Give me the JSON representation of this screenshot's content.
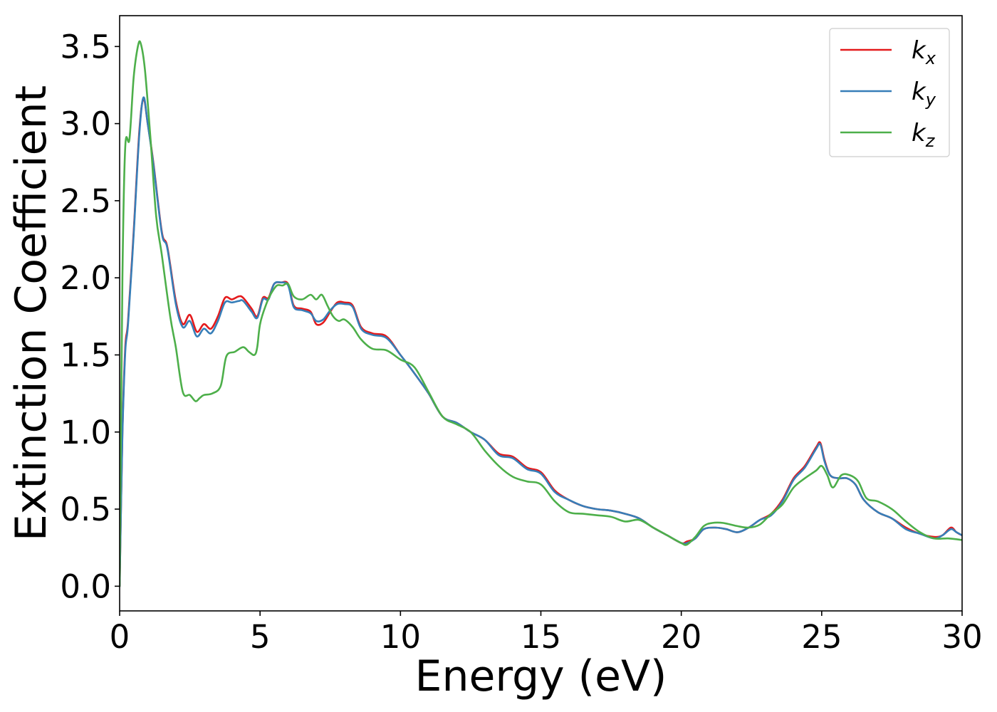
{
  "chart_data": {
    "type": "line",
    "xlabel": "Energy (eV)",
    "ylabel": "Extinction Coefficient",
    "xlim": [
      0,
      30
    ],
    "ylim": [
      -0.16,
      3.7
    ],
    "xticks": [
      0,
      5,
      10,
      15,
      20,
      25,
      30
    ],
    "xtick_labels": [
      "0",
      "5",
      "10",
      "15",
      "20",
      "25",
      "30"
    ],
    "yticks": [
      0.0,
      0.5,
      1.0,
      1.5,
      2.0,
      2.5,
      3.0,
      3.5
    ],
    "ytick_labels": [
      "0.0",
      "0.5",
      "1.0",
      "1.5",
      "2.0",
      "2.5",
      "3.0",
      "3.5"
    ],
    "grid": false,
    "legend_position": "top-right",
    "series": [
      {
        "name": "k",
        "subscript": "x",
        "color": "#e41a1c",
        "x": [
          0.0,
          0.1,
          0.2,
          0.3,
          0.5,
          0.7,
          0.85,
          1.0,
          1.2,
          1.5,
          1.7,
          2.0,
          2.25,
          2.5,
          2.75,
          3.0,
          3.25,
          3.5,
          3.75,
          4.0,
          4.25,
          4.4,
          4.7,
          4.9,
          5.1,
          5.3,
          5.5,
          5.75,
          6.0,
          6.2,
          6.5,
          6.8,
          7.0,
          7.25,
          7.5,
          7.75,
          8.0,
          8.3,
          8.6,
          9.0,
          9.5,
          10.0,
          10.5,
          11.0,
          11.5,
          12.0,
          12.5,
          13.0,
          13.5,
          14.0,
          14.5,
          15.0,
          15.5,
          16.0,
          16.5,
          17.0,
          17.5,
          18.0,
          18.5,
          19.0,
          19.5,
          20.0,
          20.2,
          20.5,
          20.8,
          21.2,
          21.6,
          22.0,
          22.4,
          22.8,
          23.2,
          23.6,
          24.0,
          24.4,
          24.8,
          24.95,
          25.1,
          25.3,
          25.6,
          25.9,
          26.2,
          26.5,
          27.0,
          27.5,
          28.0,
          28.5,
          29.0,
          29.3,
          29.6,
          29.8,
          30.0
        ],
        "y": [
          0.0,
          1.0,
          1.55,
          1.72,
          2.3,
          2.95,
          3.16,
          3.0,
          2.75,
          2.3,
          2.2,
          1.85,
          1.7,
          1.76,
          1.65,
          1.7,
          1.67,
          1.75,
          1.87,
          1.86,
          1.88,
          1.87,
          1.8,
          1.75,
          1.87,
          1.87,
          1.96,
          1.97,
          1.96,
          1.82,
          1.8,
          1.78,
          1.7,
          1.71,
          1.78,
          1.84,
          1.84,
          1.82,
          1.68,
          1.64,
          1.62,
          1.5,
          1.38,
          1.25,
          1.1,
          1.06,
          1.0,
          0.95,
          0.86,
          0.84,
          0.77,
          0.74,
          0.62,
          0.56,
          0.52,
          0.5,
          0.49,
          0.47,
          0.44,
          0.38,
          0.33,
          0.28,
          0.29,
          0.31,
          0.37,
          0.38,
          0.37,
          0.35,
          0.38,
          0.43,
          0.47,
          0.56,
          0.7,
          0.78,
          0.9,
          0.93,
          0.82,
          0.72,
          0.7,
          0.7,
          0.66,
          0.56,
          0.48,
          0.44,
          0.38,
          0.34,
          0.32,
          0.33,
          0.38,
          0.35,
          0.33
        ]
      },
      {
        "name": "k",
        "subscript": "y",
        "color": "#377eb8",
        "x": [
          0.0,
          0.1,
          0.2,
          0.3,
          0.5,
          0.7,
          0.85,
          1.0,
          1.2,
          1.5,
          1.7,
          2.0,
          2.25,
          2.5,
          2.75,
          3.0,
          3.25,
          3.5,
          3.75,
          4.0,
          4.25,
          4.4,
          4.7,
          4.9,
          5.1,
          5.3,
          5.5,
          5.75,
          6.0,
          6.2,
          6.5,
          6.8,
          7.0,
          7.25,
          7.5,
          7.75,
          8.0,
          8.3,
          8.6,
          9.0,
          9.5,
          10.0,
          10.5,
          11.0,
          11.5,
          12.0,
          12.5,
          13.0,
          13.5,
          14.0,
          14.5,
          15.0,
          15.5,
          16.0,
          16.5,
          17.0,
          17.5,
          18.0,
          18.5,
          19.0,
          19.5,
          20.0,
          20.2,
          20.5,
          20.8,
          21.2,
          21.6,
          22.0,
          22.4,
          22.8,
          23.2,
          23.6,
          24.0,
          24.4,
          24.8,
          24.95,
          25.1,
          25.3,
          25.6,
          25.9,
          26.2,
          26.5,
          27.0,
          27.5,
          28.0,
          28.5,
          29.0,
          29.3,
          29.6,
          29.8,
          30.0
        ],
        "y": [
          0.0,
          0.98,
          1.52,
          1.7,
          2.28,
          2.93,
          3.17,
          3.0,
          2.74,
          2.29,
          2.19,
          1.83,
          1.68,
          1.72,
          1.62,
          1.67,
          1.64,
          1.72,
          1.84,
          1.84,
          1.85,
          1.85,
          1.78,
          1.74,
          1.86,
          1.86,
          1.96,
          1.97,
          1.95,
          1.81,
          1.79,
          1.77,
          1.72,
          1.73,
          1.79,
          1.83,
          1.83,
          1.81,
          1.67,
          1.63,
          1.61,
          1.5,
          1.38,
          1.25,
          1.1,
          1.06,
          1.0,
          0.95,
          0.85,
          0.83,
          0.76,
          0.73,
          0.61,
          0.56,
          0.52,
          0.5,
          0.49,
          0.47,
          0.44,
          0.38,
          0.33,
          0.28,
          0.28,
          0.31,
          0.37,
          0.38,
          0.37,
          0.35,
          0.38,
          0.43,
          0.46,
          0.55,
          0.69,
          0.77,
          0.89,
          0.92,
          0.81,
          0.72,
          0.7,
          0.7,
          0.66,
          0.56,
          0.48,
          0.44,
          0.37,
          0.34,
          0.31,
          0.33,
          0.37,
          0.35,
          0.33
        ]
      },
      {
        "name": "k",
        "subscript": "z",
        "color": "#4daf4a",
        "x": [
          0.0,
          0.1,
          0.2,
          0.35,
          0.5,
          0.65,
          0.75,
          0.9,
          1.1,
          1.3,
          1.5,
          1.8,
          2.0,
          2.25,
          2.5,
          2.7,
          2.85,
          3.0,
          3.3,
          3.6,
          3.8,
          4.1,
          4.4,
          4.6,
          4.8,
          4.9,
          5.0,
          5.2,
          5.4,
          5.6,
          5.8,
          6.0,
          6.2,
          6.5,
          6.8,
          7.0,
          7.2,
          7.4,
          7.6,
          7.8,
          8.0,
          8.3,
          8.6,
          9.0,
          9.5,
          10.0,
          10.5,
          11.0,
          11.5,
          12.0,
          12.5,
          13.0,
          13.5,
          14.0,
          14.5,
          15.0,
          15.5,
          16.0,
          16.5,
          17.0,
          17.5,
          18.0,
          18.5,
          19.0,
          19.5,
          20.0,
          20.2,
          20.5,
          20.8,
          21.1,
          21.5,
          22.0,
          22.4,
          22.8,
          23.2,
          23.6,
          24.0,
          24.4,
          24.8,
          25.0,
          25.2,
          25.4,
          25.7,
          26.0,
          26.3,
          26.6,
          27.0,
          27.5,
          28.0,
          28.5,
          29.0,
          29.5,
          30.0
        ],
        "y": [
          0.0,
          2.0,
          2.85,
          2.9,
          3.3,
          3.5,
          3.52,
          3.35,
          2.9,
          2.4,
          2.15,
          1.75,
          1.55,
          1.26,
          1.24,
          1.2,
          1.22,
          1.24,
          1.25,
          1.3,
          1.49,
          1.52,
          1.55,
          1.52,
          1.5,
          1.55,
          1.7,
          1.82,
          1.9,
          1.95,
          1.95,
          1.96,
          1.88,
          1.86,
          1.89,
          1.86,
          1.89,
          1.82,
          1.75,
          1.72,
          1.73,
          1.68,
          1.6,
          1.54,
          1.53,
          1.47,
          1.42,
          1.26,
          1.1,
          1.05,
          1.0,
          0.88,
          0.78,
          0.71,
          0.68,
          0.66,
          0.55,
          0.48,
          0.47,
          0.46,
          0.45,
          0.42,
          0.43,
          0.38,
          0.33,
          0.28,
          0.27,
          0.32,
          0.39,
          0.41,
          0.41,
          0.39,
          0.38,
          0.4,
          0.47,
          0.53,
          0.64,
          0.7,
          0.75,
          0.78,
          0.72,
          0.64,
          0.72,
          0.72,
          0.68,
          0.57,
          0.55,
          0.5,
          0.42,
          0.35,
          0.31,
          0.31,
          0.3
        ]
      }
    ]
  }
}
